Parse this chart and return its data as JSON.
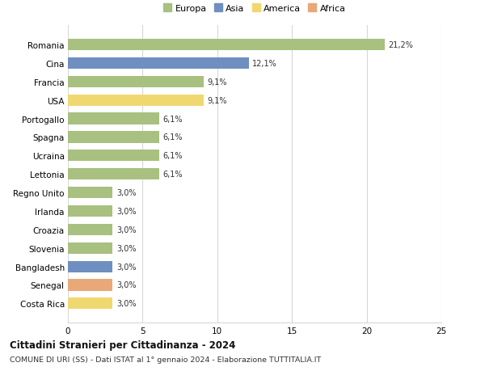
{
  "countries": [
    "Romania",
    "Cina",
    "Francia",
    "USA",
    "Portogallo",
    "Spagna",
    "Ucraina",
    "Lettonia",
    "Regno Unito",
    "Irlanda",
    "Croazia",
    "Slovenia",
    "Bangladesh",
    "Senegal",
    "Costa Rica"
  ],
  "values": [
    21.2,
    12.1,
    9.1,
    9.1,
    6.1,
    6.1,
    6.1,
    6.1,
    3.0,
    3.0,
    3.0,
    3.0,
    3.0,
    3.0,
    3.0
  ],
  "labels": [
    "21,2%",
    "12,1%",
    "9,1%",
    "9,1%",
    "6,1%",
    "6,1%",
    "6,1%",
    "6,1%",
    "3,0%",
    "3,0%",
    "3,0%",
    "3,0%",
    "3,0%",
    "3,0%",
    "3,0%"
  ],
  "continents": [
    "Europa",
    "Asia",
    "Europa",
    "America",
    "Europa",
    "Europa",
    "Europa",
    "Europa",
    "Europa",
    "Europa",
    "Europa",
    "Europa",
    "Asia",
    "Africa",
    "America"
  ],
  "colors": {
    "Europa": "#a8c080",
    "Asia": "#6e8fc0",
    "America": "#f0d870",
    "Africa": "#e8a878"
  },
  "legend_order": [
    "Europa",
    "Asia",
    "America",
    "Africa"
  ],
  "title1": "Cittadini Stranieri per Cittadinanza - 2024",
  "title2": "COMUNE DI URI (SS) - Dati ISTAT al 1° gennaio 2024 - Elaborazione TUTTITALIA.IT",
  "xlim": [
    0,
    25
  ],
  "xticks": [
    0,
    5,
    10,
    15,
    20,
    25
  ],
  "background_color": "#ffffff",
  "grid_color": "#d8d8d8"
}
